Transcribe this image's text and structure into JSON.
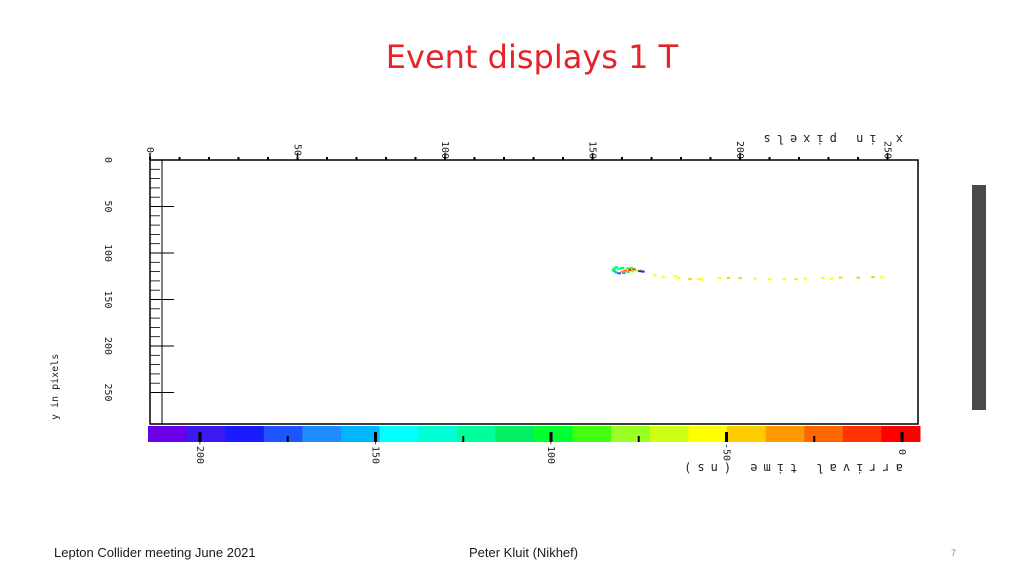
{
  "slide": {
    "title": "Event displays 1 T",
    "footer_left": "Lepton Collider meeting June 2021",
    "footer_center": "Peter Kluit (Nikhef)",
    "page_number": "7"
  },
  "chart_data": {
    "type": "scatter",
    "title": "",
    "xlabel_top": "x in pixels",
    "xlabel_bottom": "arrival time (ns)",
    "ylabel": "y in pixels",
    "xlim": [
      0,
      256
    ],
    "ylim": [
      0,
      256
    ],
    "grid": false,
    "x_ticks": [
      {
        "value": 0,
        "label": "0"
      },
      {
        "value": 50,
        "label": "50"
      },
      {
        "value": 100,
        "label": "100"
      },
      {
        "value": 150,
        "label": "150"
      },
      {
        "value": 200,
        "label": "200"
      },
      {
        "value": 250,
        "label": "250"
      }
    ],
    "y_ticks": [
      {
        "value": 0,
        "label": "0"
      },
      {
        "value": 50,
        "label": "50"
      },
      {
        "value": 100,
        "label": "100"
      },
      {
        "value": 150,
        "label": "150"
      },
      {
        "value": 200,
        "label": "200"
      },
      {
        "value": 250,
        "label": "250"
      }
    ],
    "colorbar": {
      "label": "arrival time (ns)",
      "range": [
        -200,
        0
      ],
      "ticks": [
        {
          "value": -200,
          "label": "-200"
        },
        {
          "value": -150,
          "label": "-150"
        },
        {
          "value": -100,
          "label": "-100"
        },
        {
          "value": -50,
          "label": "-50"
        },
        {
          "value": 0,
          "label": "0"
        }
      ],
      "colors": [
        "#6a00e8",
        "#3a1af0",
        "#1a1aff",
        "#1f55ff",
        "#1f8cff",
        "#00b6ff",
        "#00ffff",
        "#00ffd5",
        "#00ff99",
        "#00f060",
        "#00ff33",
        "#44ff11",
        "#99ff22",
        "#ccff11",
        "#ffff00",
        "#ffcc00",
        "#ff9900",
        "#ff6600",
        "#ff3300",
        "#ff0000"
      ]
    },
    "series": [
      {
        "points": [
          [
            158,
            115,
            -130
          ],
          [
            157.5,
            116.5,
            -120
          ],
          [
            157,
            118,
            -110
          ],
          [
            157.3,
            119.5,
            -100
          ],
          [
            158,
            121,
            -150
          ],
          [
            159,
            121.8,
            -170
          ],
          [
            160.5,
            121.5,
            -160
          ],
          [
            162,
            120.5,
            -90
          ],
          [
            163.5,
            119.7,
            -80
          ],
          [
            165,
            119,
            -70
          ],
          [
            166.5,
            118.5,
            -60
          ],
          [
            160,
            120,
            -40
          ],
          [
            161,
            119,
            -30
          ],
          [
            162.5,
            118,
            -10
          ],
          [
            164,
            117.5,
            -20
          ],
          [
            159,
            117,
            -120
          ],
          [
            160,
            116,
            -100
          ],
          [
            162,
            116.5,
            -90
          ],
          [
            163,
            116,
            -85
          ],
          [
            166,
            119.5,
            -190
          ],
          [
            167,
            120,
            -195
          ],
          [
            171,
            124,
            -60
          ],
          [
            174,
            126,
            -60
          ],
          [
            179,
            127,
            -55
          ],
          [
            183,
            127.8,
            -50
          ],
          [
            186,
            128,
            -55
          ],
          [
            193,
            127,
            -55
          ],
          [
            196,
            126.8,
            -50
          ],
          [
            200,
            127,
            -45
          ],
          [
            205,
            127.5,
            -55
          ],
          [
            210,
            128,
            -55
          ],
          [
            215,
            128,
            -60
          ],
          [
            222,
            127.5,
            -60
          ],
          [
            228,
            127.2,
            -55
          ],
          [
            234,
            126.5,
            -50
          ],
          [
            240,
            126.5,
            -45
          ],
          [
            245,
            126,
            -50
          ],
          [
            248,
            126.2,
            -55
          ],
          [
            178,
            125,
            -60
          ],
          [
            187,
            128.6,
            -58
          ],
          [
            219,
            128.2,
            -62
          ],
          [
            231,
            127.5,
            -52
          ]
        ]
      }
    ]
  }
}
